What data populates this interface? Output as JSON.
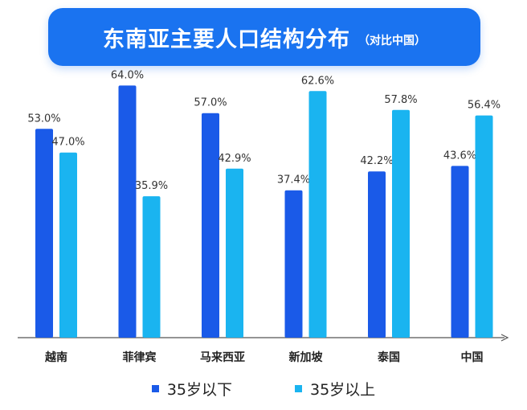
{
  "chart_data": {
    "type": "bar",
    "title": "东南亚主要人口结构分布",
    "subtitle": "（对比中国）",
    "categories": [
      "越南",
      "菲律宾",
      "马来西亚",
      "新加坡",
      "泰国",
      "中国"
    ],
    "series": [
      {
        "name": "35岁以下",
        "color": "#1a5ae8",
        "values": [
          53.0,
          64.0,
          57.0,
          37.4,
          42.2,
          43.6
        ],
        "labels": [
          "53.0%",
          "64.0%",
          "57.0%",
          "37.4%",
          "42.2%",
          "43.6%"
        ]
      },
      {
        "name": "35岁以上",
        "color": "#1ab4f0",
        "values": [
          47.0,
          35.9,
          42.9,
          62.6,
          57.8,
          56.4
        ],
        "labels": [
          "47.0%",
          "35.9%",
          "42.9%",
          "62.6%",
          "57.8%",
          "56.4%"
        ]
      }
    ],
    "ylim": [
      0,
      70
    ],
    "xlabel": "",
    "ylabel": "",
    "grid": false,
    "legend": "bottom-center"
  }
}
